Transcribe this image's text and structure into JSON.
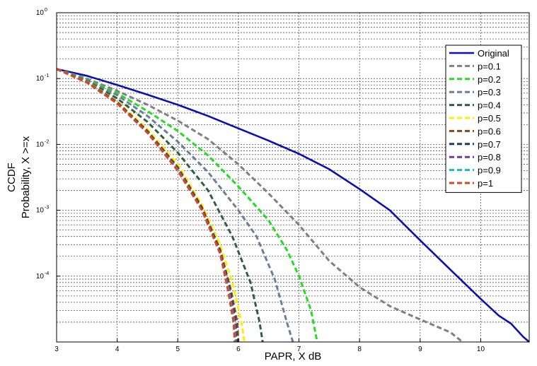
{
  "chart_data": {
    "type": "line",
    "title": "",
    "xlabel": "PAPR, X dB",
    "ylabel_lines": [
      "CCDF",
      "Probability, X >=x"
    ],
    "xlim": [
      3,
      10.8
    ],
    "ylim": [
      1e-05,
      1
    ],
    "yscale": "log",
    "grid": true,
    "legend_position": "top-right",
    "x_ticks": [
      3,
      4,
      5,
      6,
      7,
      8,
      9,
      10
    ],
    "x_tick_labels": [
      "3",
      "4",
      "5",
      "6",
      "7",
      "8",
      "9",
      "10"
    ],
    "y_ticks": [
      0.0001,
      0.001,
      0.01,
      0.1,
      1
    ],
    "y_tick_labels": [
      {
        "base": "10",
        "exp": "-4"
      },
      {
        "base": "10",
        "exp": "-3"
      },
      {
        "base": "10",
        "exp": "-2"
      },
      {
        "base": "10",
        "exp": "-1"
      },
      {
        "base": "10",
        "exp": "0"
      }
    ],
    "series": [
      {
        "name": "Original",
        "color": "#0a10b4",
        "style": "solid",
        "points": [
          [
            3,
            0.14
          ],
          [
            3.5,
            0.11
          ],
          [
            4,
            0.08
          ],
          [
            4.5,
            0.057
          ],
          [
            5,
            0.04
          ],
          [
            5.5,
            0.027
          ],
          [
            6,
            0.0175
          ],
          [
            6.5,
            0.0114
          ],
          [
            7,
            0.0072
          ],
          [
            7.5,
            0.0042
          ],
          [
            8,
            0.0021
          ],
          [
            8.5,
            0.001
          ],
          [
            9,
            0.00035
          ],
          [
            9.5,
            0.000125
          ],
          [
            10,
            4.5e-05
          ],
          [
            10.3,
            2.5e-05
          ],
          [
            10.5,
            1.9e-05
          ],
          [
            10.7,
            1.2e-05
          ],
          [
            10.8,
            1e-05
          ]
        ]
      },
      {
        "name": "p=0.1",
        "color": "#808080",
        "style": "dashed",
        "points": [
          [
            3,
            0.14
          ],
          [
            3.5,
            0.1
          ],
          [
            4,
            0.065
          ],
          [
            4.5,
            0.04
          ],
          [
            5,
            0.023
          ],
          [
            5.5,
            0.012
          ],
          [
            6,
            0.005
          ],
          [
            6.5,
            0.0018
          ],
          [
            7,
            0.0006
          ],
          [
            7.5,
            0.00017
          ],
          [
            8,
            6.8e-05
          ],
          [
            8.5,
            3.5e-05
          ],
          [
            9,
            2.2e-05
          ],
          [
            9.5,
            1.4e-05
          ],
          [
            9.7,
            1e-05
          ]
        ]
      },
      {
        "name": "p=0.2",
        "color": "#22dd22",
        "style": "dashed",
        "points": [
          [
            3,
            0.14
          ],
          [
            3.5,
            0.097
          ],
          [
            4,
            0.06
          ],
          [
            4.5,
            0.032
          ],
          [
            5,
            0.016
          ],
          [
            5.5,
            0.0068
          ],
          [
            6,
            0.0023
          ],
          [
            6.5,
            0.0007
          ],
          [
            6.8,
            0.00025
          ],
          [
            7,
            0.0001
          ],
          [
            7.2,
            3e-05
          ],
          [
            7.3,
            1e-05
          ]
        ]
      },
      {
        "name": "p=0.3",
        "color": "#6a7f9a",
        "style": "dashed",
        "points": [
          [
            3,
            0.14
          ],
          [
            3.5,
            0.095
          ],
          [
            4,
            0.056
          ],
          [
            4.5,
            0.027
          ],
          [
            5,
            0.011
          ],
          [
            5.5,
            0.0038
          ],
          [
            6,
            0.001
          ],
          [
            6.3,
            0.0004
          ],
          [
            6.6,
            9e-05
          ],
          [
            6.8,
            2e-05
          ],
          [
            6.9,
            1e-05
          ]
        ]
      },
      {
        "name": "p=0.4",
        "color": "#2f5f3f",
        "style": "dashed",
        "points": [
          [
            3,
            0.14
          ],
          [
            3.5,
            0.092
          ],
          [
            4,
            0.05
          ],
          [
            4.5,
            0.022
          ],
          [
            5,
            0.0075
          ],
          [
            5.5,
            0.002
          ],
          [
            5.9,
            0.0004
          ],
          [
            6.2,
            8e-05
          ],
          [
            6.35,
            2e-05
          ],
          [
            6.4,
            1e-05
          ]
        ]
      },
      {
        "name": "p=0.5",
        "color": "#ffee00",
        "style": "dashed",
        "points": [
          [
            3,
            0.14
          ],
          [
            3.5,
            0.09
          ],
          [
            4,
            0.045
          ],
          [
            4.5,
            0.017
          ],
          [
            5,
            0.005
          ],
          [
            5.4,
            0.0012
          ],
          [
            5.7,
            0.0003
          ],
          [
            5.9,
            8e-05
          ],
          [
            6.05,
            2e-05
          ],
          [
            6.1,
            1e-05
          ]
        ]
      },
      {
        "name": "p=0.6",
        "color": "#8b4513",
        "style": "dashed",
        "points": [
          [
            3,
            0.14
          ],
          [
            3.5,
            0.089
          ],
          [
            4,
            0.044
          ],
          [
            4.5,
            0.016
          ],
          [
            5,
            0.0045
          ],
          [
            5.4,
            0.0011
          ],
          [
            5.7,
            0.00025
          ],
          [
            5.88,
            6e-05
          ],
          [
            5.98,
            2e-05
          ],
          [
            6,
            1e-05
          ]
        ]
      },
      {
        "name": "p=0.7",
        "color": "#1a3a6a",
        "style": "dashed",
        "points": [
          [
            3,
            0.14
          ],
          [
            3.5,
            0.088
          ],
          [
            4,
            0.043
          ],
          [
            4.5,
            0.0155
          ],
          [
            5,
            0.0043
          ],
          [
            5.4,
            0.00105
          ],
          [
            5.7,
            0.00024
          ],
          [
            5.86,
            6e-05
          ],
          [
            5.95,
            2e-05
          ],
          [
            5.97,
            1e-05
          ]
        ]
      },
      {
        "name": "p=0.8",
        "color": "#7a3a8a",
        "style": "dashed",
        "points": [
          [
            3,
            0.14
          ],
          [
            3.5,
            0.088
          ],
          [
            4,
            0.043
          ],
          [
            4.5,
            0.0152
          ],
          [
            5,
            0.0042
          ],
          [
            5.4,
            0.001
          ],
          [
            5.7,
            0.00023
          ],
          [
            5.85,
            6e-05
          ],
          [
            5.94,
            2e-05
          ],
          [
            5.96,
            1e-05
          ]
        ]
      },
      {
        "name": "p=0.9",
        "color": "#18b8c8",
        "style": "dashed",
        "points": [
          [
            3,
            0.14
          ],
          [
            3.5,
            0.087
          ],
          [
            4,
            0.042
          ],
          [
            4.5,
            0.015
          ],
          [
            5,
            0.0041
          ],
          [
            5.4,
            0.001
          ],
          [
            5.7,
            0.00022
          ],
          [
            5.84,
            6e-05
          ],
          [
            5.93,
            2e-05
          ],
          [
            5.95,
            1e-05
          ]
        ]
      },
      {
        "name": "p=1",
        "color": "#dd4422",
        "style": "dashed",
        "points": [
          [
            3,
            0.14
          ],
          [
            3.5,
            0.087
          ],
          [
            4,
            0.042
          ],
          [
            4.5,
            0.015
          ],
          [
            5,
            0.004
          ],
          [
            5.4,
            0.001
          ],
          [
            5.7,
            0.00022
          ],
          [
            5.83,
            6e-05
          ],
          [
            5.92,
            2e-05
          ],
          [
            5.94,
            1e-05
          ]
        ]
      }
    ]
  }
}
